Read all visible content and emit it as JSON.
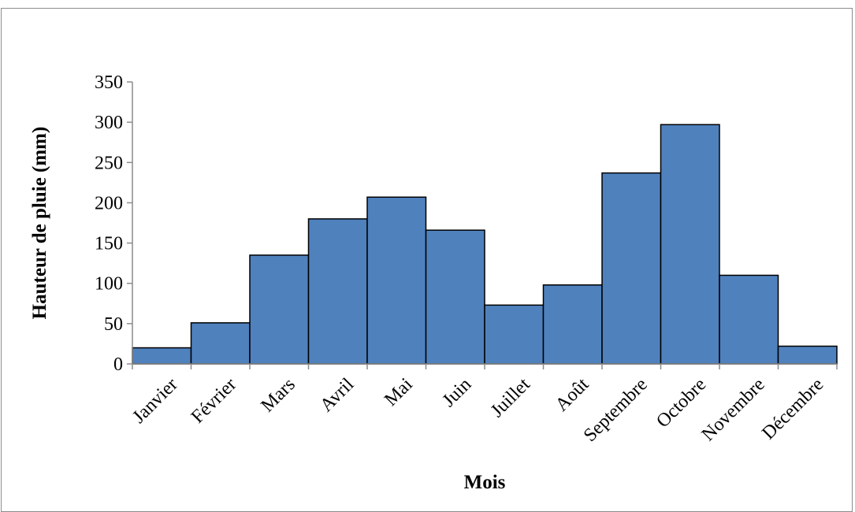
{
  "chart_data": {
    "type": "bar",
    "title": "",
    "xlabel": "Mois",
    "ylabel": "Hauteur de pluie (mm)",
    "categories": [
      "Janvier",
      "Février",
      "Mars",
      "Avril",
      "Mai",
      "Juin",
      "Juillet",
      "Août",
      "Septembre",
      "Octobre",
      "Novembre",
      "Décembre"
    ],
    "values": [
      20,
      51,
      135,
      180,
      207,
      166,
      73,
      98,
      237,
      297,
      110,
      22
    ],
    "ylim": [
      0,
      350
    ],
    "yticks": [
      0,
      50,
      100,
      150,
      200,
      250,
      300,
      350
    ],
    "grid": false,
    "legend": "none",
    "bar_color": "#4f81bd",
    "bar_edge_color": "#000000"
  }
}
